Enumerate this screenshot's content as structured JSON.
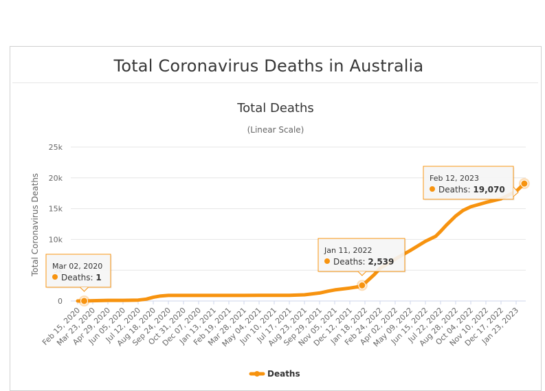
{
  "page": {
    "title": "Total Coronavirus Deaths in Australia"
  },
  "chart_data": {
    "type": "line",
    "title": "Total Deaths",
    "subtitle": "(Linear Scale)",
    "xlabel": "",
    "ylabel": "Total Coronavirus Deaths",
    "ylim": [
      0,
      25000
    ],
    "yticks": [
      0,
      5000,
      10000,
      15000,
      20000,
      25000
    ],
    "ytick_labels": [
      "0",
      "5k",
      "10k",
      "15k",
      "20k",
      "25k"
    ],
    "xtick_labels": [
      "Feb 15, 2020",
      "Mar 23, 2020",
      "Apr 29, 2020",
      "Jun 05, 2020",
      "Jul 12, 2020",
      "Aug 18, 2020",
      "Sep 24, 2020",
      "Oct 31, 2020",
      "Dec 07, 2020",
      "Jan 13, 2021",
      "Feb 19, 2021",
      "Mar 28, 2021",
      "May 04, 2021",
      "Jun 10, 2021",
      "Jul 17, 2021",
      "Aug 23, 2021",
      "Sep 29, 2021",
      "Nov 05, 2021",
      "Dec 12, 2021",
      "Jan 18, 2022",
      "Feb 24, 2022",
      "Apr 02, 2022",
      "May 09, 2022",
      "Jun 15, 2022",
      "Jul 22, 2022",
      "Aug 28, 2022",
      "Oct 04, 2022",
      "Nov 10, 2022",
      "Dec 17, 2022",
      "Jan 23, 2023"
    ],
    "grid": true,
    "legend_position": "bottom",
    "color": "#f7930f",
    "series": [
      {
        "name": "Deaths",
        "x": [
          "Feb 15, 2020",
          "Mar 02, 2020",
          "Mar 23, 2020",
          "Apr 29, 2020",
          "Jun 05, 2020",
          "Jul 12, 2020",
          "Aug 01, 2020",
          "Aug 18, 2020",
          "Sep 05, 2020",
          "Sep 24, 2020",
          "Oct 31, 2020",
          "Dec 07, 2020",
          "Jan 13, 2021",
          "Feb 19, 2021",
          "Mar 28, 2021",
          "May 04, 2021",
          "Jun 10, 2021",
          "Jul 17, 2021",
          "Aug 23, 2021",
          "Sep 29, 2021",
          "Oct 20, 2021",
          "Nov 05, 2021",
          "Dec 12, 2021",
          "Jan 01, 2022",
          "Jan 11, 2022",
          "Jan 18, 2022",
          "Jan 28, 2022",
          "Feb 10, 2022",
          "Feb 24, 2022",
          "Apr 02, 2022",
          "May 09, 2022",
          "Jun 15, 2022",
          "Jul 10, 2022",
          "Jul 22, 2022",
          "Aug 05, 2022",
          "Aug 28, 2022",
          "Sep 15, 2022",
          "Oct 04, 2022",
          "Nov 10, 2022",
          "Dec 17, 2022",
          "Jan 23, 2023",
          "Feb 12, 2023"
        ],
        "y": [
          0,
          1,
          50,
          100,
          104,
          150,
          300,
          600,
          820,
          900,
          907,
          909,
          909,
          909,
          909,
          910,
          910,
          920,
          1000,
          1300,
          1600,
          1800,
          2100,
          2300,
          2539,
          2900,
          3500,
          4300,
          5300,
          6800,
          8200,
          9700,
          10500,
          11300,
          12300,
          13800,
          14700,
          15300,
          16000,
          16600,
          17800,
          19070
        ]
      }
    ],
    "tooltips": [
      {
        "date": "Mar 02, 2020",
        "label": "Deaths: ",
        "value": "1"
      },
      {
        "date": "Jan 11, 2022",
        "label": "Deaths: ",
        "value": "2,539"
      },
      {
        "date": "Feb 12, 2023",
        "label": "Deaths: ",
        "value": "19,070"
      }
    ]
  }
}
